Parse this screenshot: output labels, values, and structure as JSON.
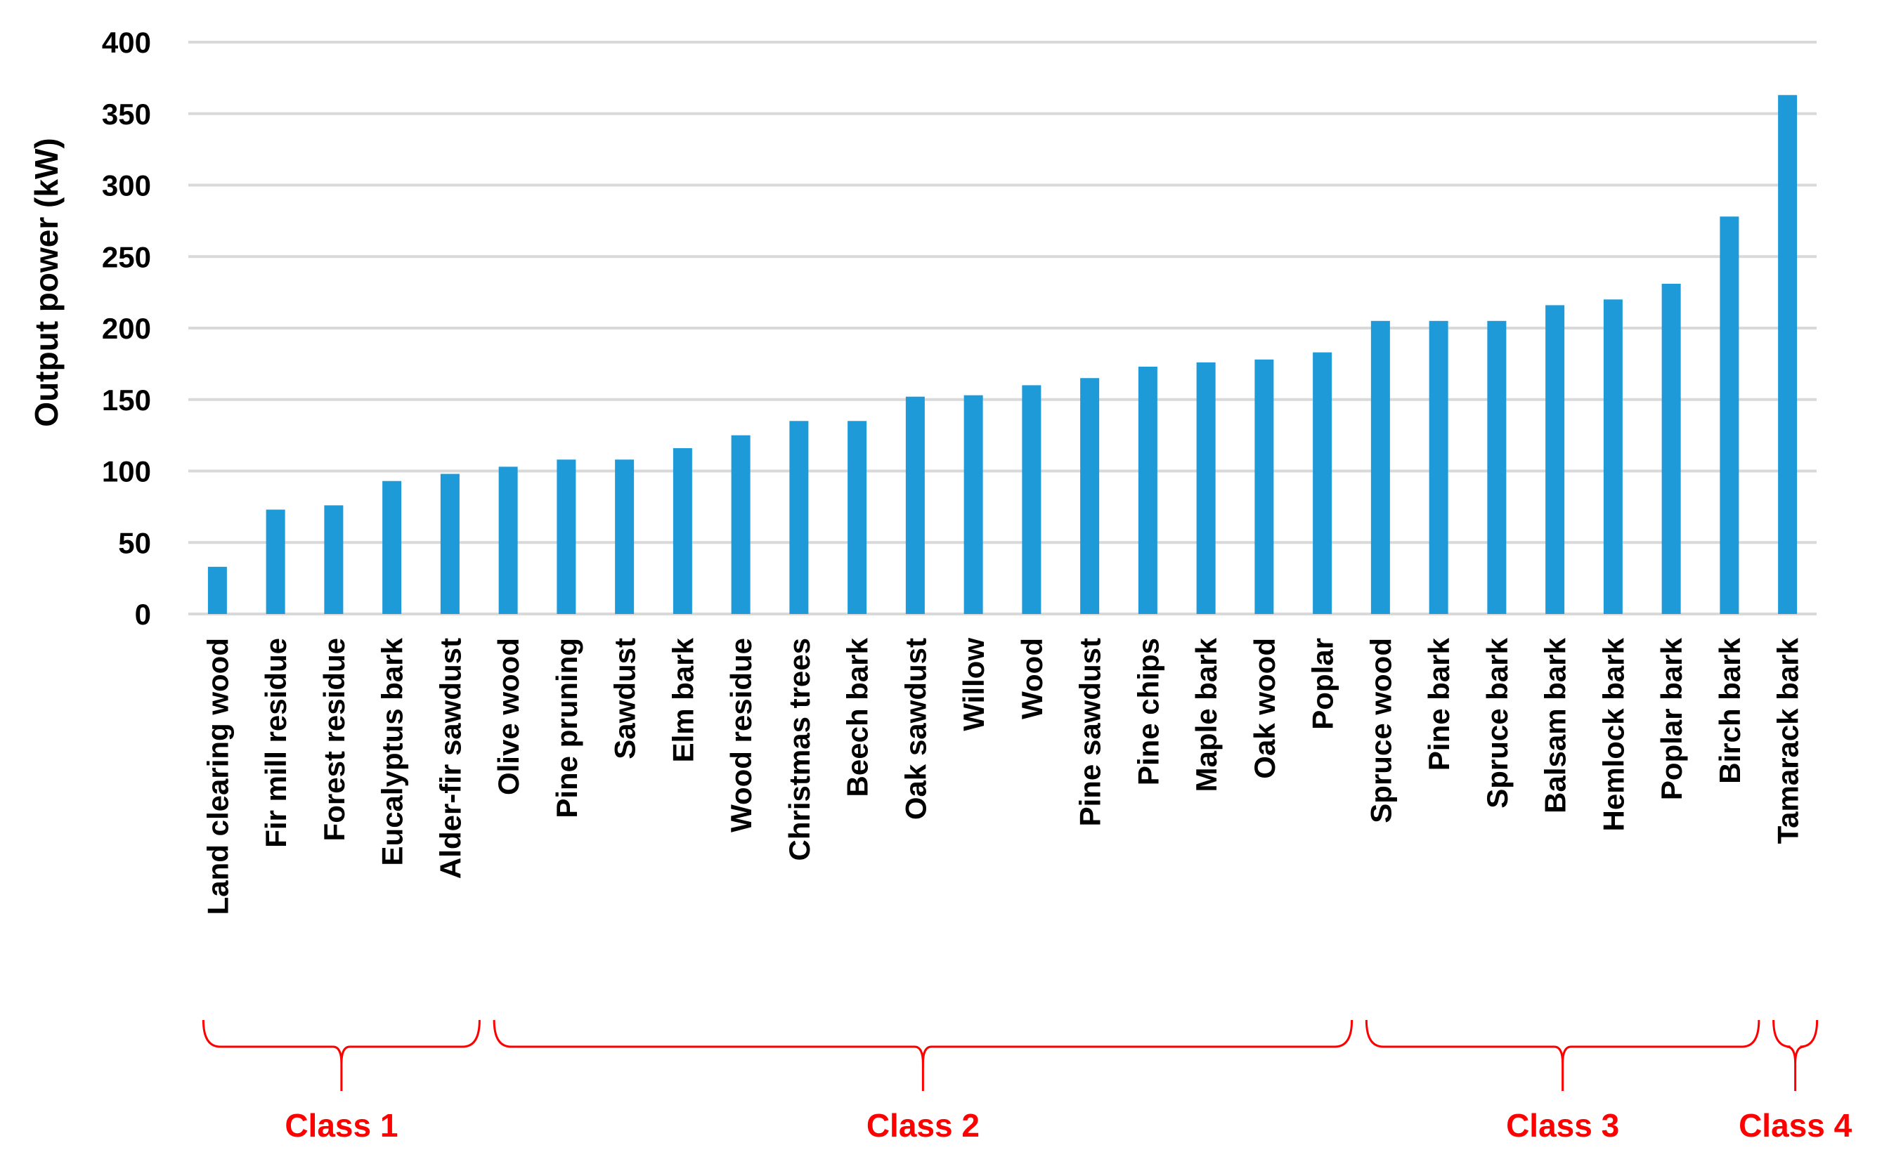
{
  "chart_data": {
    "type": "bar",
    "ylabel": "Output power (kW)",
    "xlabel": "",
    "ylim": [
      0,
      400
    ],
    "yticks": [
      "0",
      "50",
      "100",
      "150",
      "200",
      "250",
      "300",
      "350",
      "400"
    ],
    "grid": true,
    "categories": [
      "Land clearing wood",
      "Fir mill residue",
      "Forest residue",
      "Eucalyptus bark",
      "Alder-fir sawdust",
      "Olive wood",
      "Pine pruning",
      "Sawdust",
      "Elm bark",
      "Wood residue",
      "Christmas trees",
      "Beech bark",
      "Oak sawdust",
      "Willow",
      "Wood",
      "Pine sawdust",
      "Pine chips",
      "Maple bark",
      "Oak wood",
      "Poplar",
      "Spruce wood",
      "Pine bark",
      "Spruce bark",
      "Balsam bark",
      "Hemlock bark",
      "Poplar bark",
      "Birch bark",
      "Tamarack bark"
    ],
    "values": [
      33,
      73,
      76,
      93,
      98,
      103,
      108,
      108,
      116,
      125,
      135,
      135,
      152,
      153,
      160,
      165,
      173,
      176,
      178,
      183,
      205,
      205,
      205,
      216,
      220,
      231,
      278,
      363
    ],
    "groups": [
      {
        "label": "Class 1",
        "start": 0,
        "end": 4
      },
      {
        "label": "Class 2",
        "start": 5,
        "end": 19
      },
      {
        "label": "Class 3",
        "start": 20,
        "end": 26
      },
      {
        "label": "Class 4",
        "start": 27,
        "end": 27
      }
    ],
    "colors": {
      "bar": "#1f9ad9",
      "grid": "#d9d9d9",
      "group": "#ff0000"
    }
  }
}
